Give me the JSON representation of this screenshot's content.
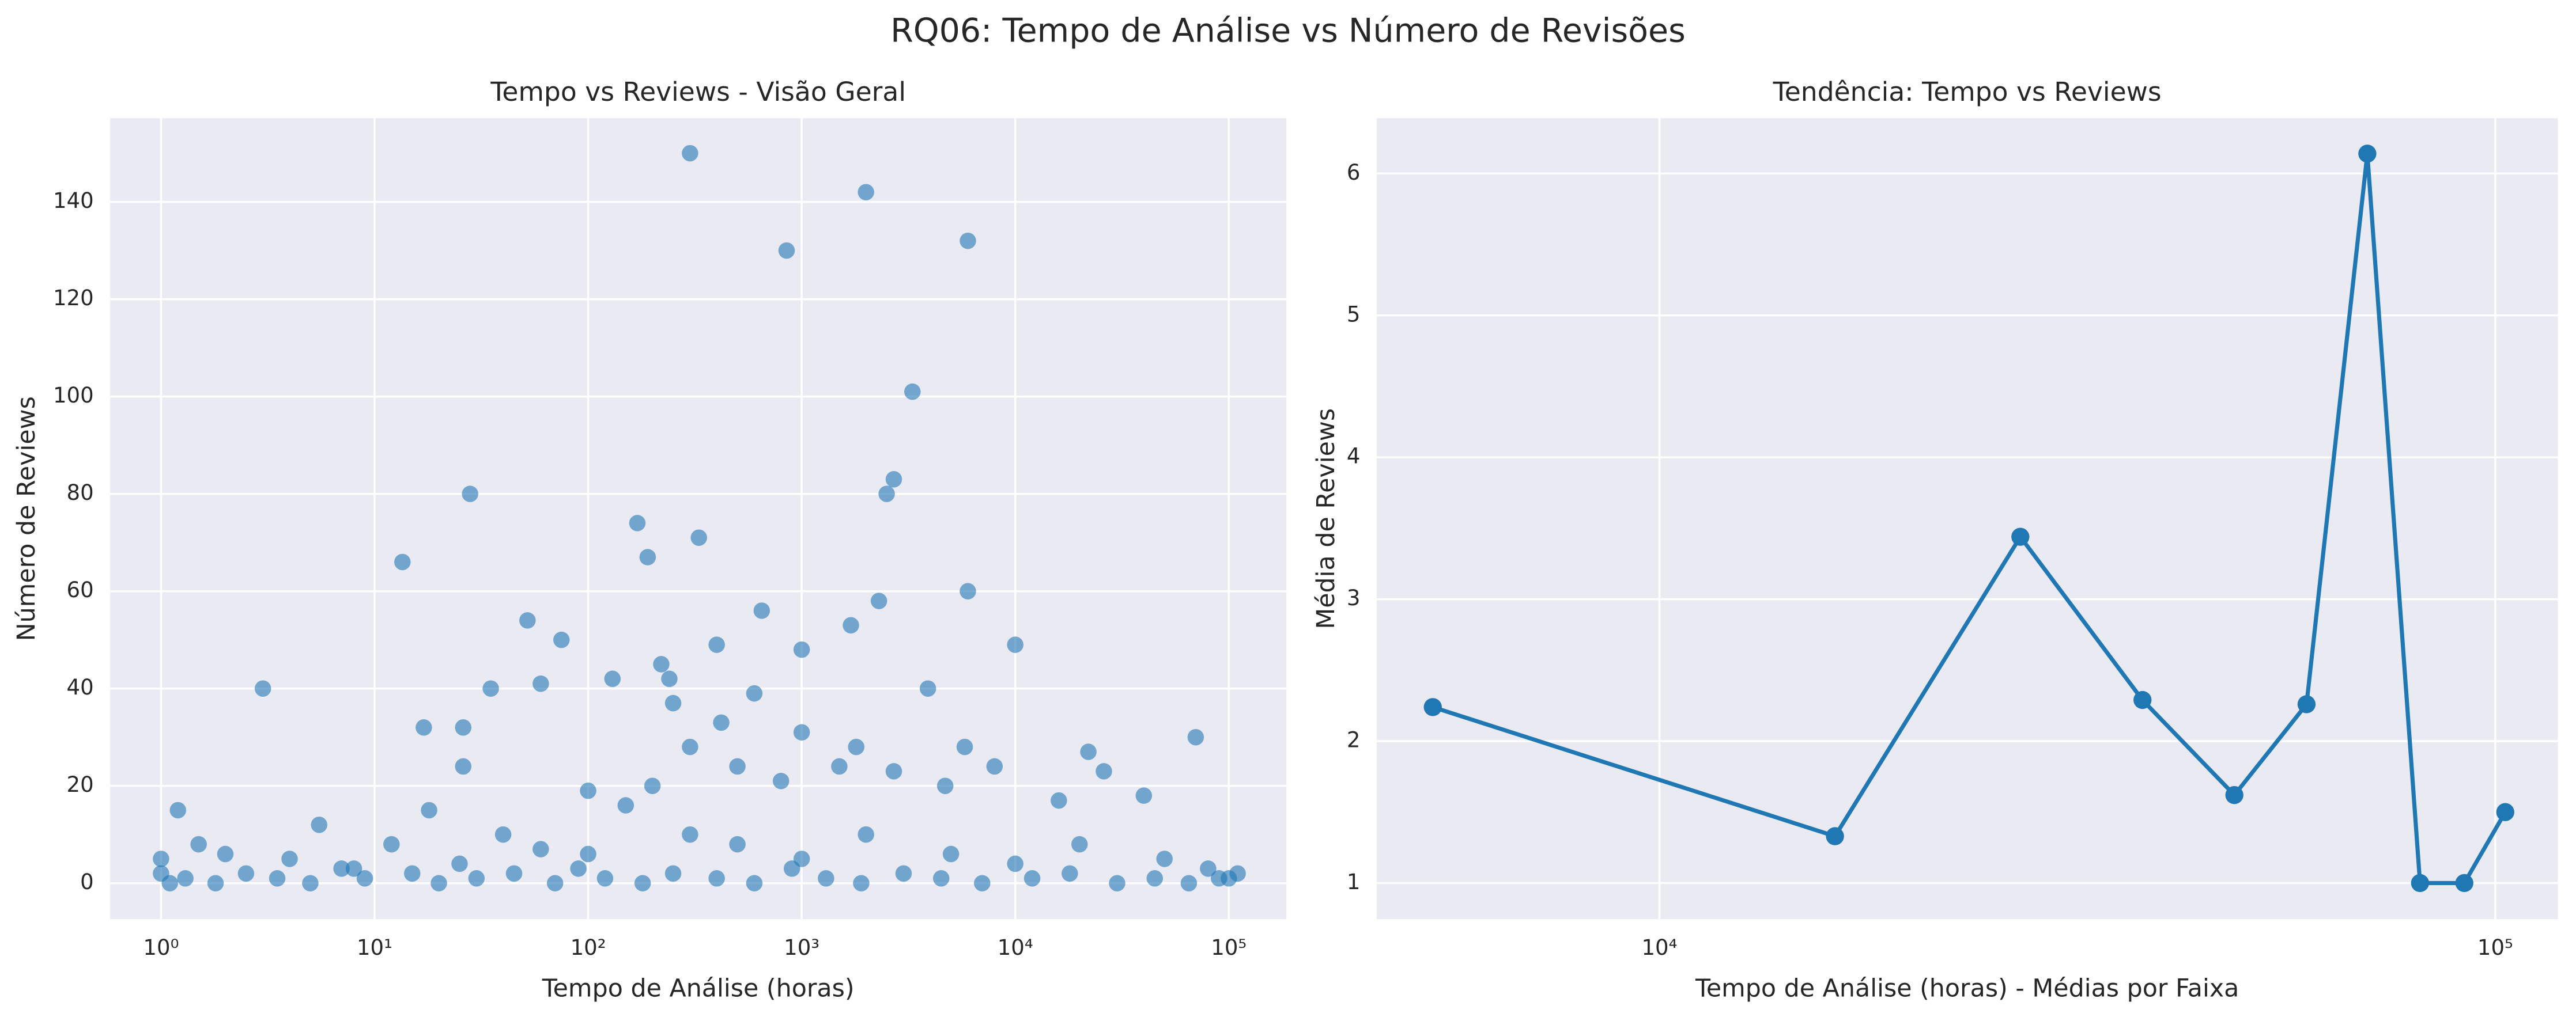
{
  "title": "RQ06: Tempo de Análise vs Número de Revisões",
  "chart_data": [
    {
      "type": "scatter",
      "title": "Tempo vs Reviews - Visão Geral",
      "x_label": "Tempo de Análise (horas)",
      "y_label": "Número de Reviews",
      "xscale": "log",
      "grid": true,
      "xlim": [
        0.578,
        186000
      ],
      "ylim": [
        -7.4,
        157.2
      ],
      "xticks": [
        {
          "value": 1,
          "label": "10⁰"
        },
        {
          "value": 10,
          "label": "10¹"
        },
        {
          "value": 100,
          "label": "10²"
        },
        {
          "value": 1000,
          "label": "10³"
        },
        {
          "value": 10000,
          "label": "10⁴"
        },
        {
          "value": 100000,
          "label": "10⁵"
        }
      ],
      "yticks": [
        0,
        20,
        40,
        60,
        80,
        100,
        120,
        140
      ],
      "series": [
        {
          "color": "#1f77b4",
          "x": [
            300,
            2000,
            850,
            6000,
            3300,
            2700,
            28,
            2500,
            170,
            330,
            13.5,
            190,
            6000,
            2300,
            650,
            52,
            1700,
            75,
            400,
            10000,
            1000,
            3,
            35,
            60,
            130,
            220,
            240,
            250,
            3900,
            17,
            26,
            420,
            600,
            1000,
            1800,
            5800,
            8000,
            22000,
            70000,
            26000,
            1.2,
            5.5,
            18,
            26,
            100,
            150,
            200,
            300,
            500,
            800,
            1500,
            2700,
            4700,
            16000,
            40000,
            2,
            1,
            1,
            1.5,
            4,
            8,
            12,
            40,
            60,
            100,
            300,
            500,
            1000,
            2000,
            5000,
            10000,
            20000,
            50000,
            80000,
            100000,
            110000,
            1.1,
            1.3,
            1.8,
            2.5,
            3.5,
            5,
            7,
            9,
            15,
            20,
            25,
            30,
            45,
            70,
            90,
            120,
            180,
            250,
            400,
            600,
            900,
            1300,
            1900,
            3000,
            4500,
            7000,
            12000,
            18000,
            30000,
            45000,
            65000,
            90000
          ],
          "values": [
            150,
            142,
            130,
            132,
            101,
            83,
            80,
            80,
            74,
            71,
            66,
            67,
            60,
            58,
            56,
            54,
            53,
            50,
            49,
            49,
            48,
            40,
            40,
            41,
            42,
            45,
            42,
            37,
            40,
            32,
            32,
            33,
            39,
            31,
            28,
            28,
            24,
            27,
            30,
            23,
            15,
            12,
            15,
            24,
            19,
            16,
            20,
            28,
            24,
            21,
            24,
            23,
            20,
            17,
            18,
            6,
            2,
            5,
            8,
            5,
            3,
            8,
            10,
            7,
            6,
            10,
            8,
            5,
            10,
            6,
            4,
            8,
            5,
            3,
            1,
            2,
            0,
            1,
            0,
            2,
            1,
            0,
            3,
            1,
            2,
            0,
            4,
            1,
            2,
            0,
            3,
            1,
            0,
            2,
            1,
            0,
            3,
            1,
            0,
            2,
            1,
            0,
            1,
            2,
            0,
            1,
            0,
            1
          ]
        }
      ]
    },
    {
      "type": "line",
      "title": "Tendência: Tempo vs Reviews",
      "x_label": "Tempo de Análise (horas) - Médias por Faixa",
      "y_label": "Média de Reviews",
      "xscale": "log",
      "grid": true,
      "xlim": [
        4590,
        118800
      ],
      "ylim": [
        0.745,
        6.39
      ],
      "xticks": [
        {
          "value": 10000,
          "label": "10⁴"
        },
        {
          "value": 100000,
          "label": "10⁵"
        }
      ],
      "yticks": [
        1,
        2,
        3,
        4,
        5,
        6
      ],
      "series": [
        {
          "color": "#1f77b4",
          "x": [
            5357,
            16220,
            27030,
            37840,
            48740,
            59460,
            70300,
            81280,
            91830,
            102800
          ],
          "values": [
            2.24,
            1.33,
            3.44,
            2.29,
            1.62,
            2.26,
            6.14,
            1.0,
            1.0,
            1.5
          ]
        }
      ]
    }
  ]
}
